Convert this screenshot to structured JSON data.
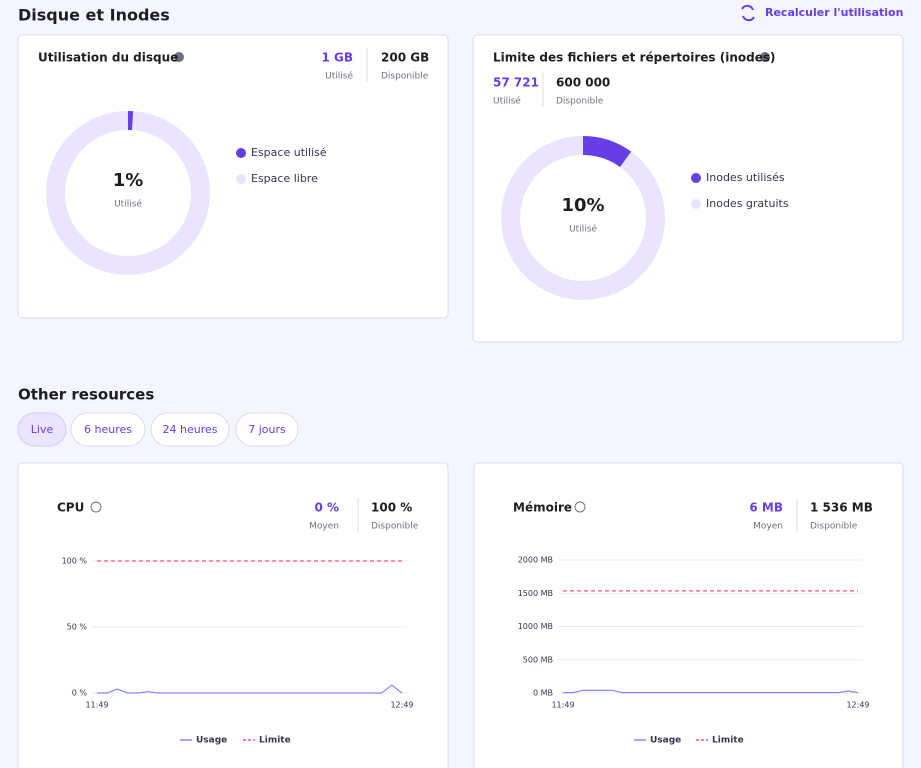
{
  "header": {
    "title": "Disque et Inodes",
    "action": "Recalculer l'utilisation"
  },
  "disk": {
    "title": "Utilisation du disque",
    "stats": [
      {
        "value": "1 GB",
        "label": "Utilisé"
      },
      {
        "value": "200 GB",
        "label": "Disponible"
      }
    ],
    "chart": {
      "type": "donut",
      "values": [
        1
      ],
      "value_labels": [
        "1%"
      ],
      "center_label": "Utilisé",
      "color": "#673de6",
      "track_color": "#ebe4ff",
      "legend": [
        "Espace utilisé",
        "Espace libre"
      ]
    }
  },
  "inodes": {
    "title": "Limite des fichiers et répertoires (inodes)",
    "stats": [
      {
        "value": "57 721",
        "label": "Utilisé"
      },
      {
        "value": "600 000",
        "label": "Disponible"
      }
    ],
    "chart": {
      "type": "donut",
      "values": [
        10
      ],
      "value_labels": [
        "10%"
      ],
      "center_label": "Utilisé",
      "color": "#673de6",
      "track_color": "#ebe4ff",
      "legend": [
        "Inodes utilisés",
        "Inodes gratuits"
      ]
    }
  },
  "resources": {
    "title": "Other resources",
    "tabs": [
      "Live",
      "6 heures",
      "24 heures",
      "7 jours"
    ],
    "active_tab": 0,
    "cpu": {
      "title": "CPU",
      "stats": [
        {
          "value": "0 %",
          "label": "Moyen"
        },
        {
          "value": "100 %",
          "label": "Disponible"
        }
      ],
      "chart": {
        "type": "line",
        "categories": [
          "11:49",
          null,
          null,
          null,
          null,
          null,
          null,
          null,
          null,
          null,
          null,
          null,
          null,
          null,
          null,
          null,
          null,
          null,
          null,
          null,
          null,
          null,
          null,
          null,
          null,
          null,
          null,
          null,
          null,
          null,
          "12:49"
        ],
        "series": [
          {
            "name": "Usage",
            "color": "#8c85ff",
            "values": [
              0,
              0,
              3,
              0,
              0,
              1,
              0,
              0,
              0,
              0,
              0,
              0,
              0,
              0,
              0,
              0,
              0,
              0,
              0,
              0,
              0,
              0,
              0,
              0,
              0,
              0,
              0,
              0,
              0,
              6,
              0
            ]
          },
          {
            "name": "Limite",
            "color": "#fc5185",
            "dashed": true,
            "values": [
              100,
              100,
              100,
              100,
              100,
              100,
              100,
              100,
              100,
              100,
              100,
              100,
              100,
              100,
              100,
              100,
              100,
              100,
              100,
              100,
              100,
              100,
              100,
              100,
              100,
              100,
              100,
              100,
              100,
              100,
              100
            ]
          }
        ],
        "ylim": [
          0,
          100
        ],
        "yticks": [
          {
            "value": 0,
            "label": "0 %"
          },
          {
            "value": 50,
            "label": "50 %"
          },
          {
            "value": 100,
            "label": "100 %"
          }
        ],
        "grid": true
      }
    },
    "memory": {
      "title": "Mémoire",
      "stats": [
        {
          "value": "6 MB",
          "label": "Moyen"
        },
        {
          "value": "1 536 MB",
          "label": "Disponible"
        }
      ],
      "chart": {
        "type": "line",
        "categories": [
          "11:49",
          null,
          null,
          null,
          null,
          null,
          null,
          null,
          null,
          null,
          null,
          null,
          null,
          null,
          null,
          null,
          null,
          null,
          null,
          null,
          null,
          null,
          null,
          null,
          null,
          null,
          null,
          null,
          null,
          null,
          "12:49"
        ],
        "series": [
          {
            "name": "Usage",
            "color": "#8c85ff",
            "values": [
              6,
              6,
              40,
              40,
              40,
              40,
              6,
              6,
              6,
              6,
              6,
              6,
              6,
              6,
              6,
              6,
              6,
              6,
              6,
              6,
              6,
              6,
              6,
              6,
              6,
              6,
              6,
              6,
              6,
              30,
              6
            ]
          },
          {
            "name": "Limite",
            "color": "#fc5185",
            "dashed": true,
            "values": [
              1536,
              1536,
              1536,
              1536,
              1536,
              1536,
              1536,
              1536,
              1536,
              1536,
              1536,
              1536,
              1536,
              1536,
              1536,
              1536,
              1536,
              1536,
              1536,
              1536,
              1536,
              1536,
              1536,
              1536,
              1536,
              1536,
              1536,
              1536,
              1536,
              1536,
              1536
            ]
          }
        ],
        "ylim": [
          0,
          2000
        ],
        "yticks": [
          {
            "value": 0,
            "label": "0 MB"
          },
          {
            "value": 500,
            "label": "500 MB"
          },
          {
            "value": 1000,
            "label": "1000 MB"
          },
          {
            "value": 1500,
            "label": "1500 MB"
          },
          {
            "value": 2000,
            "label": "2000 MB"
          }
        ],
        "grid": true
      }
    }
  }
}
